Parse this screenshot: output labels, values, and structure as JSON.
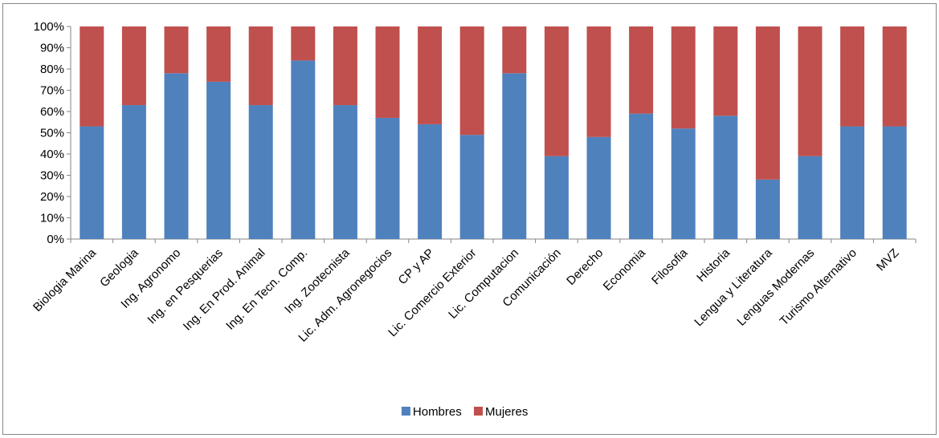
{
  "chart_data": {
    "type": "bar",
    "stacked": true,
    "percent_stacked": true,
    "categories": [
      "Biologia Marina",
      "Geologia",
      "Ing. Agronomo",
      "Ing. en Pesquerias",
      "Ing. En Prod. Animal",
      "Ing. En Tecn. Comp.",
      "Ing. Zootecnista",
      "Lic. Adm. Agronegocios",
      "CP y AP",
      "Lic. Comercio Exterior",
      "Lic. Computacion",
      "Comunicación",
      "Derecho",
      "Economia",
      "Filosofia",
      "Historia",
      "Lengua y Literatura",
      "Lenguas Modernas",
      "Turismo Alternativo",
      "MVZ"
    ],
    "series": [
      {
        "name": "Hombres",
        "color": "#4F81BD",
        "values": [
          53,
          63,
          78,
          74,
          63,
          84,
          63,
          57,
          54,
          49,
          78,
          39,
          48,
          59,
          52,
          58,
          28,
          39,
          53,
          53
        ]
      },
      {
        "name": "Mujeres",
        "color": "#C0504D",
        "values": [
          47,
          37,
          22,
          26,
          37,
          16,
          37,
          43,
          46,
          51,
          22,
          61,
          52,
          41,
          48,
          42,
          72,
          61,
          47,
          47
        ]
      }
    ],
    "ylim": [
      0,
      100
    ],
    "yticks": [
      "0%",
      "10%",
      "20%",
      "30%",
      "40%",
      "50%",
      "60%",
      "70%",
      "80%",
      "90%",
      "100%"
    ],
    "grid": false,
    "legend_position": "bottom",
    "title": "",
    "xlabel": "",
    "ylabel": ""
  }
}
